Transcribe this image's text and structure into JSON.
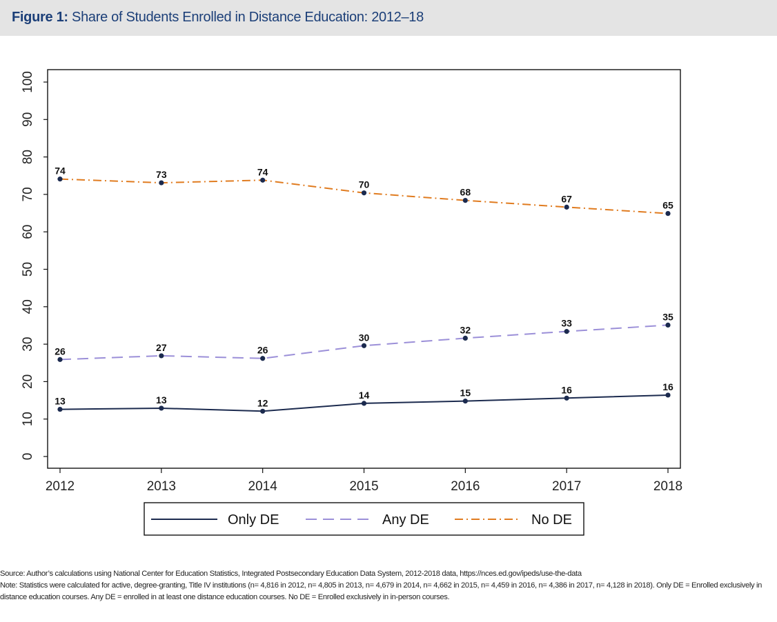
{
  "figure": {
    "label": "Figure 1:",
    "title": "Share of Students Enrolled in Distance Education: 2012–18"
  },
  "chart_data": {
    "type": "line",
    "x": [
      2012,
      2013,
      2014,
      2015,
      2016,
      2017,
      2018
    ],
    "xticks": [
      "2012",
      "2013",
      "2014",
      "2015",
      "2016",
      "2017",
      "2018"
    ],
    "ylim": [
      0,
      100
    ],
    "yticks": [
      "0",
      "10",
      "20",
      "30",
      "40",
      "50",
      "60",
      "70",
      "80",
      "90",
      "100"
    ],
    "grid": false,
    "legend_position": "bottom",
    "series": [
      {
        "name": "Only DE",
        "values": [
          12.6,
          12.9,
          12.1,
          14.2,
          14.8,
          15.6,
          16.4
        ],
        "labels": [
          "13",
          "13",
          "12",
          "14",
          "15",
          "16",
          "16"
        ],
        "color": "#1b2a4e",
        "style": "solid"
      },
      {
        "name": "Any DE",
        "values": [
          25.9,
          26.9,
          26.2,
          29.6,
          31.6,
          33.4,
          35.1
        ],
        "labels": [
          "26",
          "27",
          "26",
          "30",
          "32",
          "33",
          "35"
        ],
        "color": "#9b8fd8",
        "style": "dashed"
      },
      {
        "name": "No DE",
        "values": [
          74.1,
          73.1,
          73.8,
          70.4,
          68.4,
          66.6,
          64.9
        ],
        "labels": [
          "74",
          "73",
          "74",
          "70",
          "68",
          "67",
          "65"
        ],
        "color": "#e07b1f",
        "style": "dashdot"
      }
    ]
  },
  "notes": {
    "source": "Source: Author’s calculations using National Center for Education Statistics, Integrated Postsecondary Education Data System, 2012-2018 data, https://nces.ed.gov/ipeds/use-the-data",
    "note": "Note: Statistics were calculated for active, degree-granting, Title IV institutions (n= 4,816 in 2012, n= 4,805 in 2013, n= 4,679 in 2014, n= 4,662 in 2015, n= 4,459 in 2016, n= 4,386 in 2017, n= 4,128 in 2018). Only DE = Enrolled exclusively in distance education courses. Any DE = enrolled in at least one distance education courses. No DE = Enrolled exclusively in in-person courses."
  }
}
